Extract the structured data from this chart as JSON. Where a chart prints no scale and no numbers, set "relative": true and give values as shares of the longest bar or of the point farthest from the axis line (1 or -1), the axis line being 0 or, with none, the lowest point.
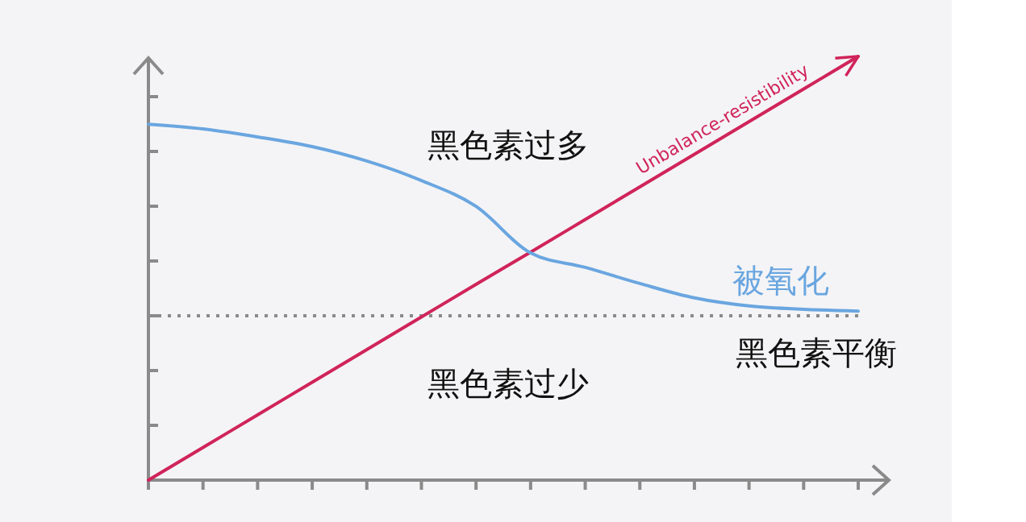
{
  "chart_data": {
    "type": "line",
    "relative": true,
    "categories": [
      null,
      null,
      null,
      null,
      null,
      null,
      null,
      null,
      null,
      null,
      null,
      null,
      null,
      null
    ],
    "series": [
      {
        "name": "Unbalance-resistibility",
        "color": "#d0245a",
        "values": [
          0,
          0.077,
          0.154,
          0.231,
          0.308,
          0.385,
          0.462,
          0.538,
          0.615,
          0.692,
          0.769,
          0.846,
          0.923,
          1
        ]
      },
      {
        "name": "被氧化",
        "color": "#6aa6e0",
        "values": [
          0.84,
          0.829,
          0.81,
          0.787,
          0.753,
          0.707,
          0.646,
          0.536,
          0.502,
          0.464,
          0.43,
          0.411,
          0.403,
          0.399
        ]
      }
    ],
    "ref_lines": [
      {
        "axis": "y",
        "value": 0.388,
        "label": "黑色素平衡",
        "color": "#8a8a8a",
        "line_style": "dotted"
      }
    ],
    "annotations": [
      "黑色素过多",
      "黑色素过少"
    ],
    "line_style": "solid"
  }
}
